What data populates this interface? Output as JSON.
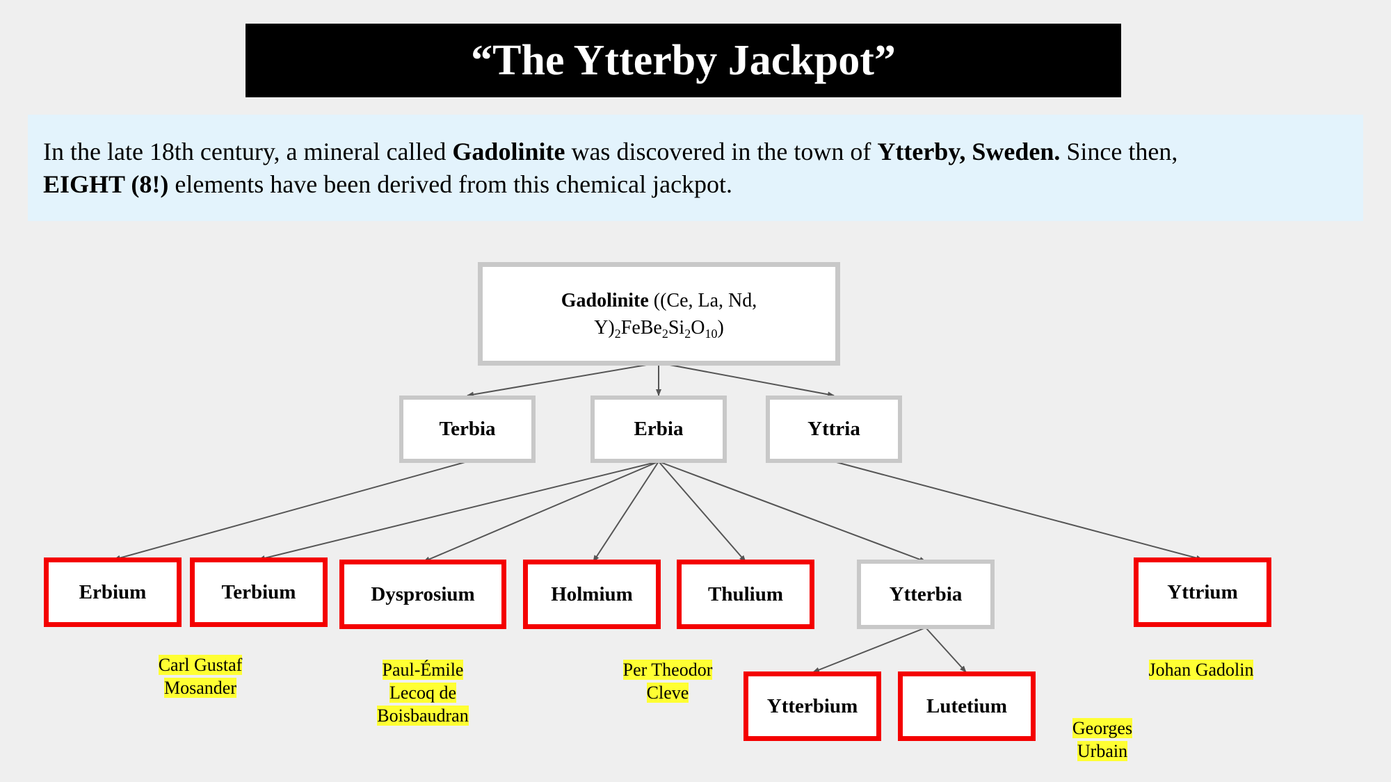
{
  "title": "“The Ytterby Jackpot”",
  "intro": {
    "t1": "In the late 18th century, a mineral called ",
    "b1": "Gadolinite",
    "t2": " was discovered in the town of ",
    "b2": "Ytterby, Sweden.",
    "t3": " Since then, ",
    "b3": "EIGHT (8!)",
    "t4": " elements have been derived from this chemical jackpot."
  },
  "root": {
    "name": "Gadolinite",
    "f1": " ((Ce, La, Nd,",
    "f2": "Y)",
    "s1": "2",
    "f3": "FeBe",
    "s2": "2",
    "f4": "Si",
    "s3": "2",
    "f5": "O",
    "s4": "10",
    "f6": ")"
  },
  "oxides": {
    "terbia": "Terbia",
    "erbia": "Erbia",
    "yttria": "Yttria",
    "ytterbia": "Ytterbia"
  },
  "elements": {
    "erbium": "Erbium",
    "terbium": "Terbium",
    "dysprosium": "Dysprosium",
    "holmium": "Holmium",
    "thulium": "Thulium",
    "yttrium": "Yttrium",
    "ytterbium": "Ytterbium",
    "lutetium": "Lutetium"
  },
  "discoverers": {
    "mosander": [
      "Carl Gustaf",
      "Mosander"
    ],
    "boisbaudran": [
      "Paul-Émile",
      "Lecoq de",
      "Boisbaudran"
    ],
    "cleve": [
      "Per Theodor",
      "Cleve"
    ],
    "urbain": [
      "Georges",
      "Urbain"
    ],
    "gadolin": [
      "Johan Gadolin"
    ]
  },
  "colors": {
    "element_border": "#f40000",
    "compound_border": "#c8c8c8",
    "highlight": "#ffff33",
    "intro_bg": "#e3f3fc"
  }
}
